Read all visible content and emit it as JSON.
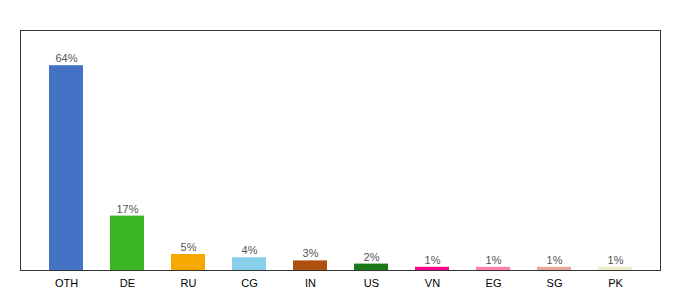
{
  "chart_data": {
    "type": "bar",
    "categories": [
      "OTH",
      "DE",
      "RU",
      "CG",
      "IN",
      "US",
      "VN",
      "EG",
      "SG",
      "PK"
    ],
    "values": [
      64,
      17,
      5,
      4,
      3,
      2,
      1,
      1,
      1,
      1
    ],
    "value_labels": [
      "64%",
      "17%",
      "5%",
      "4%",
      "3%",
      "2%",
      "1%",
      "1%",
      "1%",
      "1%"
    ],
    "colors": [
      "#4472c4",
      "#3cb522",
      "#f5a800",
      "#87ceeb",
      "#b05010",
      "#1a7a1a",
      "#ff0090",
      "#ff80b0",
      "#e8a898",
      "#f0eec8"
    ],
    "ylim": [
      0,
      75
    ],
    "data_labels": true,
    "tick_labels": "x",
    "grid": false
  }
}
